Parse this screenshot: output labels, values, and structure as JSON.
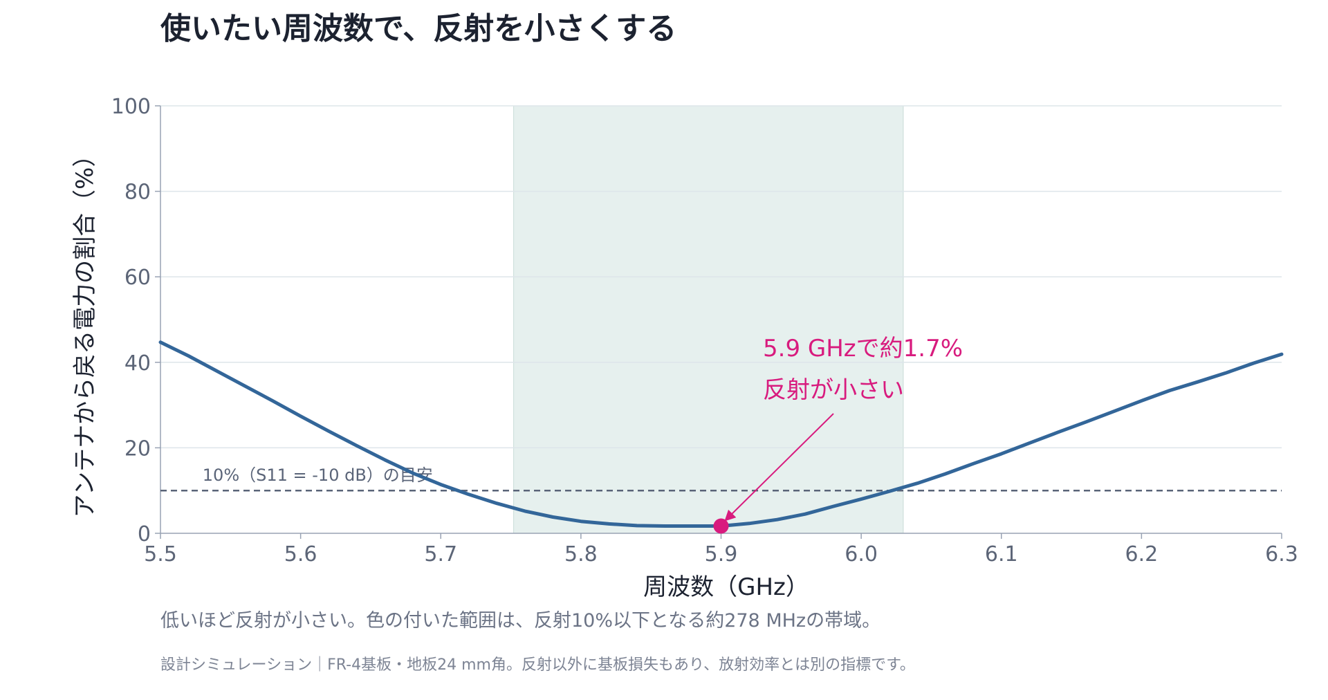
{
  "title": "使いたい周波数で、反射を小さくする",
  "caption": "低いほど反射が小さい。色の付いた範囲は、反射10%以下となる約278 MHzの帯域。",
  "source": "設計シミュレーション｜FR-4基板・地板24 mm角。反射以外に基板損失もあり、放射効率とは別の指標です。",
  "colors": {
    "curve": "#336699",
    "band": "#e6f0ee",
    "band_edge": "#c9dcd8",
    "threshold": "#5a6478",
    "highlight": "#d81b7e",
    "grid": "#dde5ea",
    "axis": "#98a2b3",
    "tick_text": "#5c6577",
    "title": "#1c2230"
  },
  "chart_data": {
    "type": "line",
    "xlabel": "周波数（GHz）",
    "ylabel": "アンテナから戻る電力の割合（%）",
    "xlim": [
      5.5,
      6.3
    ],
    "ylim": [
      0,
      100
    ],
    "xticks": [
      "5.5",
      "5.6",
      "5.7",
      "5.8",
      "5.9",
      "6.0",
      "6.1",
      "6.2",
      "6.3"
    ],
    "yticks": [
      "0",
      "20",
      "40",
      "60",
      "80",
      "100"
    ],
    "grid": true,
    "series": [
      {
        "x": [
          5.5,
          5.52,
          5.54,
          5.56,
          5.58,
          5.6,
          5.62,
          5.64,
          5.66,
          5.68,
          5.7,
          5.72,
          5.74,
          5.76,
          5.78,
          5.8,
          5.82,
          5.84,
          5.86,
          5.88,
          5.9,
          5.92,
          5.94,
          5.96,
          5.98,
          6.0,
          6.02,
          6.04,
          6.06,
          6.08,
          6.1,
          6.12,
          6.14,
          6.16,
          6.18,
          6.2,
          6.22,
          6.24,
          6.26,
          6.28,
          6.3
        ],
        "values": [
          44.7,
          41.5,
          38.0,
          34.5,
          31.0,
          27.4,
          23.9,
          20.5,
          17.2,
          14.1,
          11.4,
          9.1,
          7.0,
          5.2,
          3.8,
          2.8,
          2.2,
          1.8,
          1.7,
          1.7,
          1.7,
          2.3,
          3.2,
          4.5,
          6.3,
          8.0,
          9.8,
          11.7,
          13.9,
          16.3,
          18.6,
          21.1,
          23.6,
          26.0,
          28.5,
          31.0,
          33.4,
          35.4,
          37.5,
          39.8,
          41.9
        ]
      }
    ],
    "band": {
      "x0": 5.752,
      "x1": 6.03
    },
    "threshold": {
      "y": 10,
      "label": "10%（S11 = -10 dB）の目安"
    },
    "highlight": {
      "x": 5.9,
      "y": 1.7
    },
    "annotation": {
      "line1": "5.9 GHzで約1.7%",
      "line2": "反射が小さい"
    }
  }
}
